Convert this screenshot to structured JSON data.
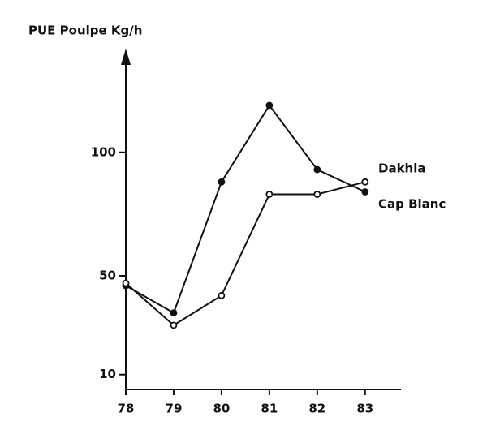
{
  "chart_data": {
    "type": "line",
    "title": "PUE Poulpe Kg/h",
    "x": [
      78,
      79,
      80,
      81,
      82,
      83
    ],
    "series": [
      {
        "name": "Dakhla",
        "color": "#111111",
        "marker": "filled",
        "values": [
          46,
          35,
          88,
          119,
          93,
          84
        ]
      },
      {
        "name": "Cap Blanc",
        "color": "#111111",
        "marker": "open",
        "values": [
          47,
          30,
          42,
          83,
          83,
          88
        ]
      }
    ],
    "xlim": [
      78,
      83.75
    ],
    "xticks": [
      78,
      79,
      80,
      81,
      82,
      83
    ],
    "ylim": [
      4,
      140
    ],
    "yticks": [
      10,
      50,
      100
    ]
  }
}
